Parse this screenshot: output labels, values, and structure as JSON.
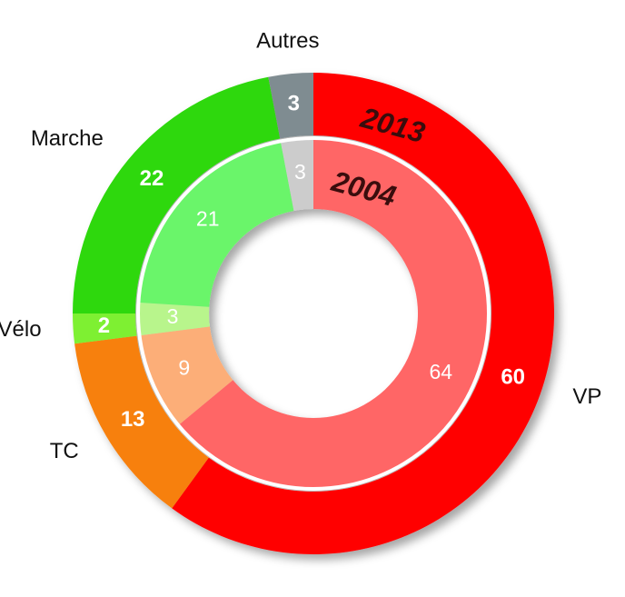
{
  "chart_data": {
    "type": "donut",
    "categories": [
      "VP",
      "TC",
      "Vélo",
      "Marche",
      "Autres"
    ],
    "series": [
      {
        "name": "2013",
        "values": [
          60,
          13,
          2,
          22,
          3
        ],
        "colors": [
          "#ff0000",
          "#f7800c",
          "#7ef031",
          "#2dd80f",
          "#7f8c91"
        ]
      },
      {
        "name": "2004",
        "values": [
          64,
          9,
          3,
          21,
          3
        ],
        "colors": [
          "#ff6666",
          "#fcae78",
          "#b8f58c",
          "#6af56a",
          "#cccccc"
        ]
      }
    ]
  }
}
